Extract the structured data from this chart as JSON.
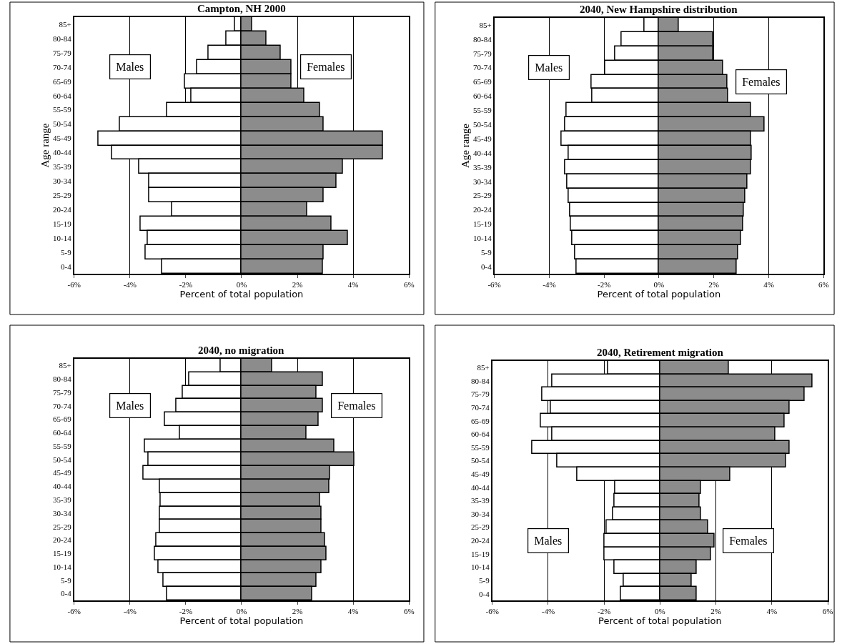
{
  "chart_data": [
    {
      "type": "bar",
      "orientation": "horizontal",
      "stacked": true,
      "title": "Campton, NH 2000",
      "xlabel": "Percent of total population",
      "ylabel": "Age range",
      "categories": [
        "85+",
        "80-84",
        "75-79",
        "70-74",
        "65-69",
        "60-64",
        "55-59",
        "50-54",
        "45-49",
        "40-44",
        "35-39",
        "30-34",
        "25-29",
        "20-24",
        "15-19",
        "10-14",
        "5-9",
        "0-4"
      ],
      "xlim": [
        -6,
        6
      ],
      "xticks": [
        {
          "value": -6,
          "label": "-6%"
        },
        {
          "value": -4,
          "label": "-4%"
        },
        {
          "value": -2,
          "label": "-2%"
        },
        {
          "value": 0,
          "label": "0%"
        },
        {
          "value": 2,
          "label": "2%"
        },
        {
          "value": 4,
          "label": "4%"
        },
        {
          "value": 6,
          "label": "6%"
        }
      ],
      "grid": "x",
      "series": [
        {
          "name": "Males",
          "color": "#ffffff",
          "values": [
            -0.25,
            -0.55,
            -1.18,
            -1.6,
            -2.03,
            -1.8,
            -2.66,
            -4.37,
            -5.14,
            -4.64,
            -3.67,
            -3.3,
            -3.3,
            -2.49,
            -3.62,
            -3.35,
            -3.45,
            -2.84
          ]
        },
        {
          "name": "Females",
          "color": "#8c8c8c",
          "values": [
            0.37,
            0.88,
            1.39,
            1.79,
            1.79,
            2.25,
            2.81,
            2.94,
            5.06,
            5.06,
            3.63,
            3.4,
            2.94,
            2.35,
            3.22,
            3.82,
            2.94,
            2.9
          ]
        }
      ]
    },
    {
      "type": "bar",
      "orientation": "horizontal",
      "stacked": true,
      "title": "2040, New Hampshire distribution",
      "xlabel": "Percent of total population",
      "ylabel": "Age range",
      "categories": [
        "85+",
        "80-84",
        "75-79",
        "70-74",
        "65-69",
        "60-64",
        "55-59",
        "50-54",
        "45-49",
        "40-44",
        "35-39",
        "30-34",
        "25-29",
        "20-24",
        "15-19",
        "10-14",
        "5-9",
        "0-4"
      ],
      "xlim": [
        -6,
        6
      ],
      "xticks": [
        {
          "value": -6,
          "label": "-6%"
        },
        {
          "value": -4,
          "label": "-4%"
        },
        {
          "value": -2,
          "label": "-2%"
        },
        {
          "value": 0,
          "label": "0%"
        },
        {
          "value": 2,
          "label": "2%"
        },
        {
          "value": 4,
          "label": "4%"
        },
        {
          "value": 6,
          "label": "6%"
        }
      ],
      "grid": "x",
      "series": [
        {
          "name": "Males",
          "color": "#ffffff",
          "values": [
            -0.54,
            -1.36,
            -1.59,
            -1.96,
            -2.45,
            -2.42,
            -3.38,
            -3.42,
            -3.56,
            -3.28,
            -3.42,
            -3.34,
            -3.28,
            -3.24,
            -3.2,
            -3.15,
            -3.05,
            -3.01
          ]
        },
        {
          "name": "Females",
          "color": "#8c8c8c",
          "values": [
            0.73,
            1.96,
            1.96,
            2.33,
            2.48,
            2.51,
            3.34,
            3.84,
            3.34,
            3.38,
            3.34,
            3.21,
            3.15,
            3.1,
            3.06,
            2.98,
            2.88,
            2.84
          ]
        }
      ]
    },
    {
      "type": "bar",
      "orientation": "horizontal",
      "stacked": true,
      "title": "2040, no migration",
      "xlabel": "Percent of total population",
      "categories": [
        "85+",
        "80-84",
        "75-79",
        "70-74",
        "65-69",
        "60-64",
        "55-59",
        "50-54",
        "45-49",
        "40-44",
        "35-39",
        "30-34",
        "25-29",
        "20-24",
        "15-19",
        "10-14",
        "5-9",
        "0-4"
      ],
      "xlim": [
        -6,
        6
      ],
      "xticks": [
        {
          "value": -6,
          "label": "-6%"
        },
        {
          "value": -4,
          "label": "-4%"
        },
        {
          "value": -2,
          "label": "-2%"
        },
        {
          "value": 0,
          "label": "0%"
        },
        {
          "value": 2,
          "label": "2%"
        },
        {
          "value": 4,
          "label": "4%"
        },
        {
          "value": 6,
          "label": "6%"
        }
      ],
      "grid": "x",
      "series": [
        {
          "name": "Males",
          "color": "#ffffff",
          "values": [
            -0.75,
            -1.88,
            -2.11,
            -2.34,
            -2.74,
            -2.21,
            -3.46,
            -3.33,
            -3.51,
            -2.93,
            -2.89,
            -2.93,
            -2.93,
            -3.05,
            -3.1,
            -2.97,
            -2.79,
            -2.66
          ]
        },
        {
          "name": "Females",
          "color": "#8c8c8c",
          "values": [
            1.1,
            2.91,
            2.68,
            2.91,
            2.77,
            2.32,
            3.31,
            4.04,
            3.17,
            3.14,
            2.82,
            2.86,
            2.86,
            3.0,
            3.05,
            2.86,
            2.68,
            2.54
          ]
        }
      ]
    },
    {
      "type": "bar",
      "orientation": "horizontal",
      "stacked": true,
      "title": "2040, Retirement migration",
      "xlabel": "Percent of total population",
      "categories": [
        "85+",
        "80-84",
        "75-79",
        "70-74",
        "65-69",
        "60-64",
        "55-59",
        "50-54",
        "45-49",
        "40-44",
        "35-39",
        "30-34",
        "25-29",
        "20-24",
        "15-19",
        "10-14",
        "5-9",
        "0-4"
      ],
      "xlim": [
        -6,
        6
      ],
      "xticks": [
        {
          "value": -6,
          "label": "-6%"
        },
        {
          "value": -4,
          "label": "-4%"
        },
        {
          "value": -2,
          "label": "-2%"
        },
        {
          "value": 0,
          "label": "0%"
        },
        {
          "value": 2,
          "label": "2%"
        },
        {
          "value": 4,
          "label": "4%"
        },
        {
          "value": 6,
          "label": "6%"
        }
      ],
      "grid": "x",
      "series": [
        {
          "name": "Males",
          "color": "#ffffff",
          "values": [
            -1.86,
            -3.85,
            -4.22,
            -3.91,
            -4.27,
            -3.85,
            -4.58,
            -3.67,
            -2.95,
            -1.6,
            -1.63,
            -1.67,
            -1.9,
            -2.0,
            -2.0,
            -1.63,
            -1.31,
            -1.4
          ]
        },
        {
          "name": "Females",
          "color": "#8c8c8c",
          "values": [
            2.45,
            5.45,
            5.18,
            4.62,
            4.45,
            4.13,
            4.62,
            4.5,
            2.5,
            1.45,
            1.42,
            1.45,
            1.72,
            1.94,
            1.82,
            1.31,
            1.13,
            1.31
          ]
        }
      ]
    }
  ]
}
